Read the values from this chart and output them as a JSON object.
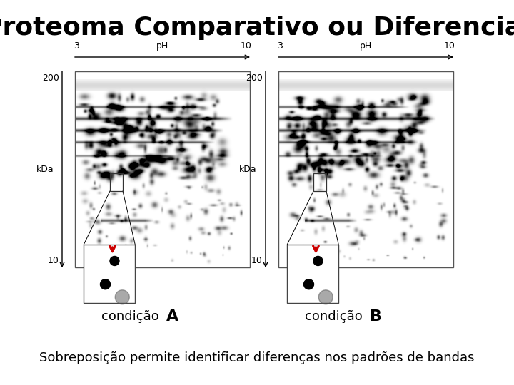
{
  "title": "Proteoma Comparativo ou Diferencial",
  "title_fontsize": 26,
  "title_fontweight": "bold",
  "subtitle": "Sobreposição permite identificar diferenças nos padrões de bandas",
  "subtitle_fontsize": 13,
  "label_A": "condição",
  "label_A_letter": "A",
  "label_B": "condição",
  "label_B_letter": "B",
  "label_fontsize": 13,
  "letter_fontsize": 16,
  "letter_fontweight": "bold",
  "pH_label": "pH",
  "pH_start": "3",
  "pH_end": "10",
  "kDa_label": "kDa",
  "y200_label": "200",
  "y10_label": "10",
  "arrow_color": "#cc0000",
  "bg_color": "#ffffff"
}
